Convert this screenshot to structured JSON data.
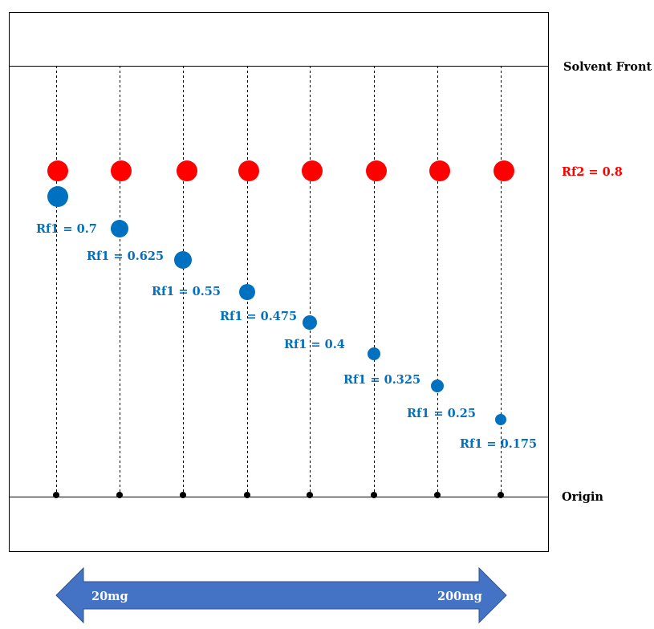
{
  "labels": {
    "solvent_front": "Solvent Front",
    "origin": "Origin",
    "rf2": "Rf2 = 0.8",
    "dose_low": "20mg",
    "dose_high": "200mg"
  },
  "colors": {
    "red_spot": "#ff0000",
    "blue_spot": "#0070c0",
    "arrow": "#4472c4",
    "rf2_text": "#ff0000",
    "rf1_text": "#0070c0"
  },
  "rf2_value": 0.8,
  "lanes": [
    {
      "rf1": 0.7,
      "label": "Rf1 = 0.7"
    },
    {
      "rf1": 0.625,
      "label": "Rf1 = 0.625"
    },
    {
      "rf1": 0.55,
      "label": "Rf1 = 0.55"
    },
    {
      "rf1": 0.475,
      "label": "Rf1 = 0.475"
    },
    {
      "rf1": 0.4,
      "label": "Rf1 = 0.4"
    },
    {
      "rf1": 0.325,
      "label": "Rf1 = 0.325"
    },
    {
      "rf1": 0.25,
      "label": "Rf1 = 0.25"
    },
    {
      "rf1": 0.175,
      "label": "Rf1 = 0.175"
    }
  ]
}
